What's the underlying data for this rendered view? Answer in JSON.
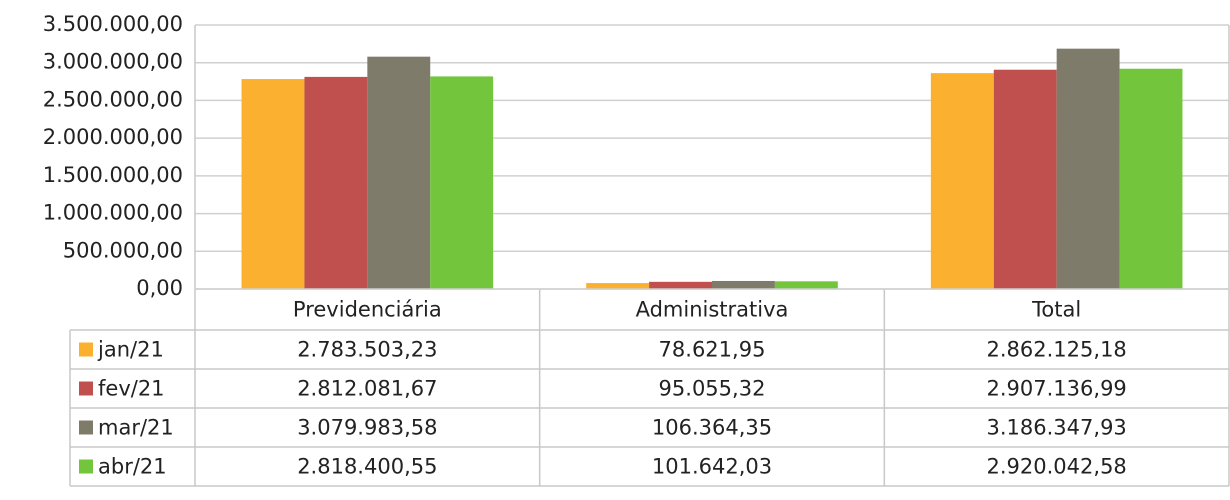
{
  "chart_data": {
    "type": "bar",
    "categories": [
      "Previdenciária",
      "Administrativa",
      "Total"
    ],
    "series": [
      {
        "name": "jan/21",
        "color": "#fbb12f",
        "values": [
          2783503.23,
          78621.95,
          2862125.18
        ],
        "value_labels": [
          "2.783.503,23",
          "78.621,95",
          "2.862.125,18"
        ]
      },
      {
        "name": "fev/21",
        "color": "#c0504d",
        "values": [
          2812081.67,
          95055.32,
          2907136.99
        ],
        "value_labels": [
          "2.812.081,67",
          "95.055,32",
          "2.907.136,99"
        ]
      },
      {
        "name": "mar/21",
        "color": "#7f7b6b",
        "values": [
          3079983.58,
          106364.35,
          3186347.93
        ],
        "value_labels": [
          "3.079.983,58",
          "106.364,35",
          "3.186.347,93"
        ]
      },
      {
        "name": "abr/21",
        "color": "#73c53c",
        "values": [
          2818400.55,
          101642.03,
          2920042.58
        ],
        "value_labels": [
          "2.818.400,55",
          "101.642,03",
          "2.920.042,58"
        ]
      }
    ],
    "ylim": [
      0,
      3500000
    ],
    "yticks": [
      {
        "value": 0,
        "label": "0,00"
      },
      {
        "value": 500000,
        "label": "500.000,00"
      },
      {
        "value": 1000000,
        "label": "1.000.000,00"
      },
      {
        "value": 1500000,
        "label": "1.500.000,00"
      },
      {
        "value": 2000000,
        "label": "2.000.000,00"
      },
      {
        "value": 2500000,
        "label": "2.500.000,00"
      },
      {
        "value": 3000000,
        "label": "3.000.000,00"
      },
      {
        "value": 3500000,
        "label": "3.500.000,00"
      }
    ],
    "grid": true
  }
}
